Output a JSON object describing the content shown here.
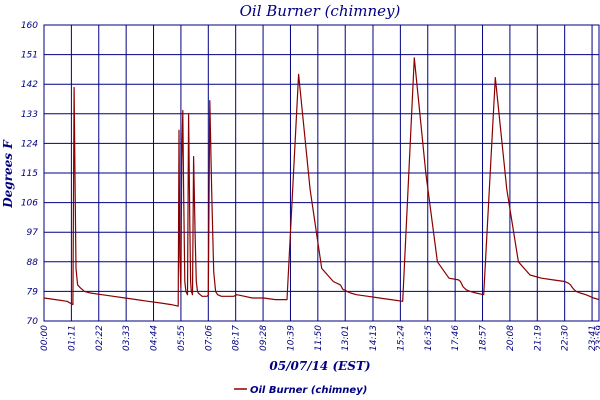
{
  "chart_data": {
    "type": "line",
    "title": "Oil Burner (chimney)",
    "xlabel": "05/07/14 (EST)",
    "ylabel": "Degrees F",
    "ylim": [
      70,
      160
    ],
    "y_ticks": [
      70,
      79,
      88,
      97,
      106,
      115,
      124,
      133,
      142,
      151,
      160
    ],
    "xlim": [
      "00:00",
      "23:59"
    ],
    "x_ticks": [
      "00:00",
      "01:11",
      "02:22",
      "03:33",
      "04:44",
      "05:55",
      "07:06",
      "08:17",
      "09:28",
      "10:39",
      "11:50",
      "13:01",
      "14:13",
      "15:24",
      "16:35",
      "17:46",
      "18:57",
      "20:08",
      "21:19",
      "22:30",
      "23:41",
      "23:59"
    ],
    "grid": true,
    "legend_position": "bottom-center",
    "series": [
      {
        "name": "Oil Burner (chimney)",
        "color": "#8b0000",
        "x": [
          "00:00",
          "00:30",
          "01:00",
          "01:15",
          "01:18",
          "01:21",
          "01:23",
          "01:27",
          "01:35",
          "01:45",
          "02:00",
          "02:30",
          "03:00",
          "03:30",
          "04:00",
          "04:30",
          "05:00",
          "05:30",
          "05:48",
          "05:50",
          "05:52",
          "05:55",
          "05:57",
          "06:00",
          "06:02",
          "06:05",
          "06:08",
          "06:12",
          "06:15",
          "06:18",
          "06:20",
          "06:22",
          "06:25",
          "06:28",
          "06:32",
          "06:35",
          "06:38",
          "06:40",
          "06:45",
          "06:50",
          "06:55",
          "07:00",
          "07:03",
          "07:06",
          "07:10",
          "07:15",
          "07:20",
          "07:25",
          "07:30",
          "07:40",
          "07:45",
          "07:50",
          "07:53",
          "07:56",
          "08:00",
          "08:04",
          "08:08",
          "08:12",
          "08:20",
          "08:40",
          "09:00",
          "09:30",
          "10:00",
          "10:30",
          "11:00",
          "11:30",
          "12:00",
          "12:30",
          "12:48",
          "12:51",
          "12:53",
          "12:56",
          "13:00",
          "13:05",
          "13:15",
          "13:30",
          "14:00",
          "14:30",
          "15:00",
          "15:30",
          "16:00",
          "16:30",
          "17:00",
          "17:30",
          "17:55",
          "18:00",
          "18:02",
          "18:04",
          "18:06",
          "18:10",
          "18:15",
          "18:25",
          "18:40",
          "19:00",
          "19:30",
          "20:00",
          "20:30",
          "21:00",
          "21:30",
          "22:00",
          "22:30",
          "22:40",
          "22:45",
          "22:48",
          "22:51",
          "22:55",
          "23:00",
          "23:10",
          "23:25",
          "23:35",
          "23:45",
          "23:59"
        ],
        "values": [
          77,
          76.5,
          76,
          75,
          141,
          108,
          86,
          81,
          80,
          79,
          78.5,
          78,
          77.5,
          77,
          76.5,
          76,
          75.5,
          75,
          74.5,
          128,
          90,
          80,
          118,
          134,
          110,
          82,
          79,
          78,
          133,
          100,
          82,
          79,
          78,
          120,
          95,
          82,
          79,
          78.5,
          78,
          77.5,
          77.5,
          77.5,
          77.5,
          78,
          137,
          108,
          85,
          79,
          78,
          77.5,
          77.5,
          77.5,
          77.5,
          77.5,
          77.5,
          77.5,
          77.5,
          77.5,
          78,
          77.5,
          77,
          77,
          76.5,
          76.5,
          145,
          110,
          86,
          82,
          81,
          80.5,
          80,
          79.5,
          79.5,
          79,
          78.5,
          78,
          77.5,
          77,
          76.5,
          76,
          150,
          115,
          88,
          83,
          82.5,
          82,
          81.5,
          81,
          80.5,
          80,
          79.5,
          79,
          78.5,
          78,
          144,
          110,
          88,
          84,
          83,
          82.5,
          82,
          81.5,
          81,
          80.5,
          80,
          79.5,
          79,
          78.5,
          78,
          77.5,
          77,
          76.5
        ]
      }
    ]
  }
}
